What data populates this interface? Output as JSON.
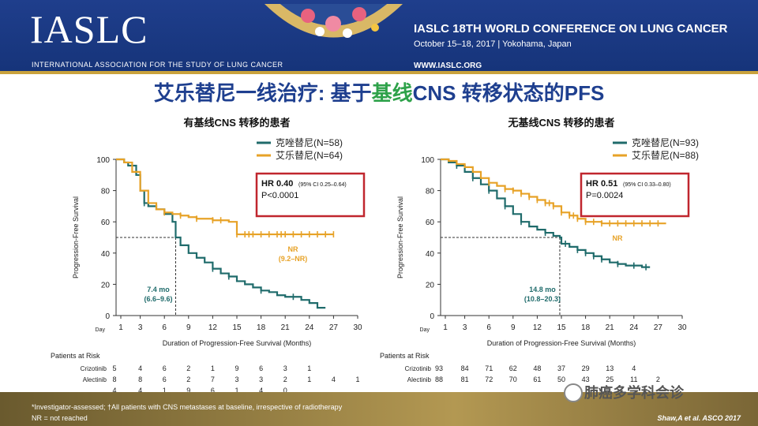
{
  "header": {
    "logo": "IASLC",
    "org_name": "INTERNATIONAL ASSOCIATION FOR THE STUDY OF LUNG CANCER",
    "conference_title": "IASLC 18TH WORLD CONFERENCE ON LUNG CANCER",
    "conference_date": "October 15–18, 2017 | Yokohama, Japan",
    "url": "WWW.IASLC.ORG"
  },
  "slide": {
    "title_part1": "艾乐替尼一线治疗: 基于",
    "title_highlight": "基线",
    "title_part2": "CNS 转移状态的PFS"
  },
  "colors": {
    "crizotinib": "#1f6b6b",
    "alectinib": "#e7a227",
    "box": "#c0262e",
    "title": "#1e3f8f",
    "highlight": "#2ea24a"
  },
  "chart_data": [
    {
      "type": "line",
      "title": "有基线CNS 转移的患者",
      "xlabel": "Duration  of Progression-Free  Survival (Months)",
      "ylabel": "Progression-Free  Survival",
      "x_axis_label": "Day",
      "xticks": [
        "1",
        "3",
        "6",
        "9",
        "12",
        "15",
        "18",
        "21",
        "24",
        "27",
        "30"
      ],
      "yticks": [
        "0",
        "20",
        "40",
        "60",
        "80",
        "100"
      ],
      "xlim": [
        0,
        30
      ],
      "ylim": [
        0,
        100
      ],
      "series": [
        {
          "name": "克唑替尼(N=58)",
          "color_key": "crizotinib",
          "x": [
            0,
            1,
            1.5,
            2.5,
            3,
            3.5,
            4,
            5,
            6,
            7,
            7.4,
            8,
            9,
            10,
            11,
            12,
            13,
            14,
            15,
            16,
            17,
            18,
            19,
            20,
            21,
            22,
            23,
            24,
            25,
            26
          ],
          "y": [
            100,
            98,
            96,
            90,
            80,
            72,
            70,
            68,
            65,
            60,
            50,
            45,
            40,
            37,
            34,
            30,
            27,
            25,
            22,
            20,
            18,
            16,
            15,
            13,
            12,
            12,
            10,
            8,
            5,
            5
          ],
          "censor_x": [
            3.5,
            12,
            14,
            18,
            22
          ]
        },
        {
          "name": "艾乐替尼(N=64)",
          "color_key": "alectinib",
          "x": [
            0,
            1,
            2,
            3,
            4,
            5,
            6,
            7,
            8,
            9,
            10,
            11,
            12,
            13,
            14,
            15,
            16,
            17,
            18,
            20,
            22,
            24,
            26,
            27
          ],
          "y": [
            100,
            98,
            92,
            80,
            72,
            68,
            66,
            65,
            64,
            63,
            62,
            62,
            61,
            61,
            60,
            52,
            52,
            52,
            52,
            52,
            52,
            52,
            52,
            52
          ],
          "censor_x": [
            6,
            8,
            10,
            12,
            13,
            15,
            16,
            16.5,
            17,
            18,
            19,
            20,
            20.5,
            21,
            22,
            23,
            24,
            25,
            26,
            27
          ]
        }
      ],
      "median_reference": {
        "y": 50,
        "x": 7.4,
        "label": "7.4 mo",
        "ci": "(6.6–9.6)"
      },
      "nr_label": "NR",
      "nr_ci": "(9.2–NR)",
      "hr_box": {
        "hr": "HR 0.40",
        "ci": "(95% CI 0.25–0.64)",
        "p": "P<0.0001"
      },
      "risk_table": {
        "header": "Patients at Risk",
        "rows": [
          {
            "label": "Crizotinib",
            "values": [
              "5",
              "4",
              "6",
              "2",
              "1",
              "9",
              "6",
              "3",
              "1"
            ]
          },
          {
            "label": "Alectinib",
            "values": [
              "8",
              "8",
              "6",
              "2",
              "7",
              "3",
              "3",
              "2",
              "1",
              "4",
              "1"
            ]
          },
          {
            "label": "",
            "values": [
              "4",
              "4",
              "1",
              "9",
              "6",
              "1",
              "4",
              "0"
            ]
          }
        ]
      }
    },
    {
      "type": "line",
      "title": "无基线CNS 转移的患者",
      "xlabel": "Duration  of Progression-Free  Survival (Months)",
      "ylabel": "Progression-Free  Survival",
      "x_axis_label": "Day",
      "xticks": [
        "1",
        "3",
        "6",
        "9",
        "12",
        "15",
        "18",
        "21",
        "24",
        "27",
        "30"
      ],
      "yticks": [
        "0",
        "20",
        "40",
        "60",
        "80",
        "100"
      ],
      "xlim": [
        0,
        30
      ],
      "ylim": [
        0,
        100
      ],
      "series": [
        {
          "name": "克唑替尼(N=93)",
          "color_key": "crizotinib",
          "x": [
            0,
            1,
            2,
            3,
            4,
            5,
            6,
            7,
            8,
            9,
            10,
            11,
            12,
            13,
            14,
            14.8,
            15,
            16,
            17,
            18,
            19,
            20,
            21,
            22,
            23,
            24,
            25,
            26
          ],
          "y": [
            100,
            98,
            96,
            92,
            88,
            84,
            80,
            75,
            70,
            65,
            60,
            57,
            55,
            53,
            51,
            50,
            46,
            44,
            42,
            40,
            38,
            36,
            34,
            33,
            32,
            32,
            31,
            31
          ],
          "censor_x": [
            2,
            4,
            6,
            8,
            10,
            13,
            15.5,
            17,
            18,
            19,
            20,
            22,
            24,
            25.5
          ]
        },
        {
          "name": "艾乐替尼(N=88)",
          "color_key": "alectinib",
          "x": [
            0,
            1,
            2,
            3,
            4,
            5,
            6,
            7,
            8,
            9,
            10,
            11,
            12,
            13,
            14,
            15,
            16,
            17,
            18,
            19,
            20,
            22,
            24,
            26,
            28
          ],
          "y": [
            100,
            99,
            97,
            95,
            92,
            88,
            85,
            83,
            81,
            80,
            78,
            76,
            74,
            72,
            70,
            66,
            64,
            62,
            60,
            60,
            59,
            59,
            59,
            59,
            59
          ],
          "censor_x": [
            6,
            8,
            9,
            10,
            11,
            12,
            13,
            13.5,
            14,
            15,
            16,
            16.5,
            17,
            18,
            19,
            20,
            21,
            22,
            23,
            24,
            25,
            26,
            27
          ]
        }
      ],
      "median_reference": {
        "y": 50,
        "x": 14.8,
        "label": "14.8 mo",
        "ci": "(10.8–20.3)"
      },
      "nr_label": "NR",
      "nr_ci": "",
      "hr_box": {
        "hr": "HR 0.51",
        "ci": "(95% CI 0.33–0.80)",
        "p": "P=0.0024"
      },
      "risk_table": {
        "header": "Patients at Risk",
        "rows": [
          {
            "label": "Crizotinib",
            "values": [
              "93",
              "84",
              "71",
              "62",
              "48",
              "37",
              "29",
              "13",
              "4"
            ]
          },
          {
            "label": "Alectinib",
            "values": [
              "88",
              "81",
              "72",
              "70",
              "61",
              "50",
              "43",
              "25",
              "11",
              "2"
            ]
          }
        ]
      }
    }
  ],
  "footer": {
    "note1": "*Investigator-assessed; †All patients with CNS metastases at baseline, irrespective of radiotherapy",
    "note2": "NR = not reached",
    "citation": "Shaw,A et al. ASCO 2017",
    "watermark": "肺癌多学科会诊"
  }
}
